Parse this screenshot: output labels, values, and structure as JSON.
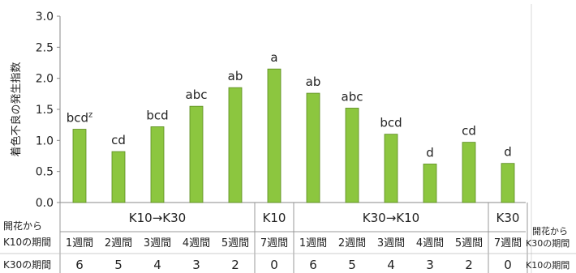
{
  "chart_data": {
    "type": "bar",
    "ylabel": "着色不良の発生指数",
    "ylim": [
      0,
      3.0
    ],
    "yticks": [
      "0.0",
      "0.5",
      "1.0",
      "1.5",
      "2.0",
      "2.5",
      "3.0"
    ],
    "bar_color": "#8cc63f",
    "bar_edge_color": "#5a8a1f",
    "values": [
      1.18,
      0.82,
      1.22,
      1.55,
      1.85,
      2.15,
      1.76,
      1.52,
      1.1,
      0.62,
      0.97,
      0.63
    ],
    "annotations": [
      "bcd",
      "cd",
      "bcd",
      "abc",
      "ab",
      "a",
      "ab",
      "abc",
      "bcd",
      "d",
      "cd",
      "d"
    ],
    "first_annotation_superscript": "z",
    "groups": [
      {
        "label": "K10→K30",
        "start": 0,
        "count": 5
      },
      {
        "label": "K10",
        "start": 5,
        "count": 1
      },
      {
        "label": "K30→K10",
        "start": 6,
        "count": 5
      },
      {
        "label": "K30",
        "start": 11,
        "count": 1
      }
    ],
    "row1": [
      "1週間",
      "2週間",
      "3週間",
      "4週間",
      "5週間",
      "7週間",
      "1週間",
      "2週間",
      "3週間",
      "4週間",
      "5週間",
      "7週間"
    ],
    "row2": [
      "6",
      "5",
      "4",
      "3",
      "2",
      "0",
      "6",
      "5",
      "4",
      "3",
      "2",
      "0"
    ],
    "left_labels": {
      "line1": "開花から",
      "line2": "K10の期間",
      "line3": "K30の期間"
    },
    "right_labels": {
      "line1": "開花から",
      "line2": "K30の期間",
      "line3": "K10の期間"
    }
  }
}
